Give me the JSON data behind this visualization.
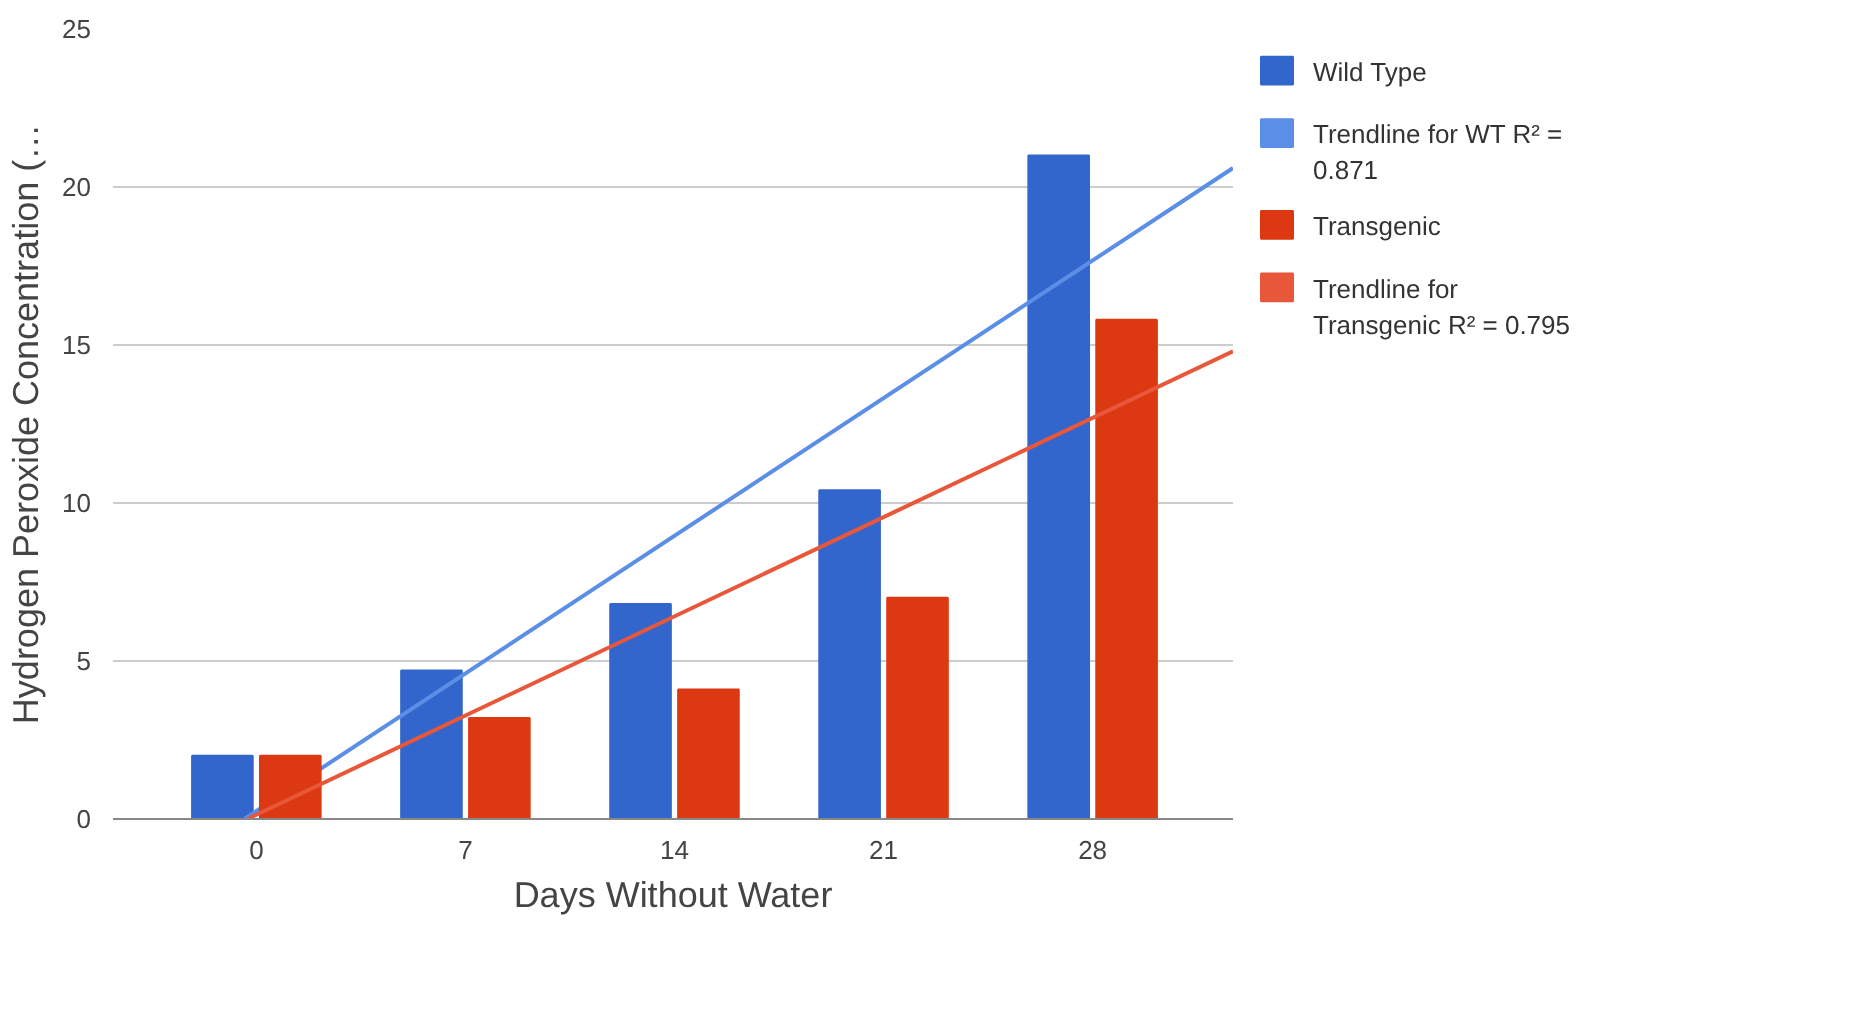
{
  "chart_data": {
    "type": "bar",
    "xlabel": "Days Without Water",
    "ylabel": "Hydrogen Peroxide Concentration (…",
    "x": [
      0,
      7,
      14,
      21,
      28
    ],
    "xlim": [
      -4.8,
      32.7
    ],
    "xticks": [
      0,
      7,
      14,
      21,
      28
    ],
    "ylim": [
      0,
      25
    ],
    "yticks": [
      0,
      5,
      10,
      15,
      20,
      25
    ],
    "grid": "y",
    "legend": "right",
    "series": [
      {
        "name": "Wild Type",
        "color": "#3366cc",
        "values": [
          2.0,
          4.7,
          6.8,
          10.4,
          21.0
        ]
      },
      {
        "name": "Trendline for WT R² = 0.871",
        "type": "line",
        "color": "#5b8ee6",
        "x": [
          -0.4,
          32.7
        ],
        "values": [
          0,
          20.6
        ]
      },
      {
        "name": "Transgenic",
        "color": "#dc3912",
        "values": [
          2.0,
          3.2,
          4.1,
          7.0,
          15.8
        ]
      },
      {
        "name": "Trendline for Transgenic R² = 0.795",
        "type": "line",
        "color": "#e8573a",
        "x": [
          -0.3,
          32.7
        ],
        "values": [
          0,
          14.8
        ]
      }
    ]
  }
}
